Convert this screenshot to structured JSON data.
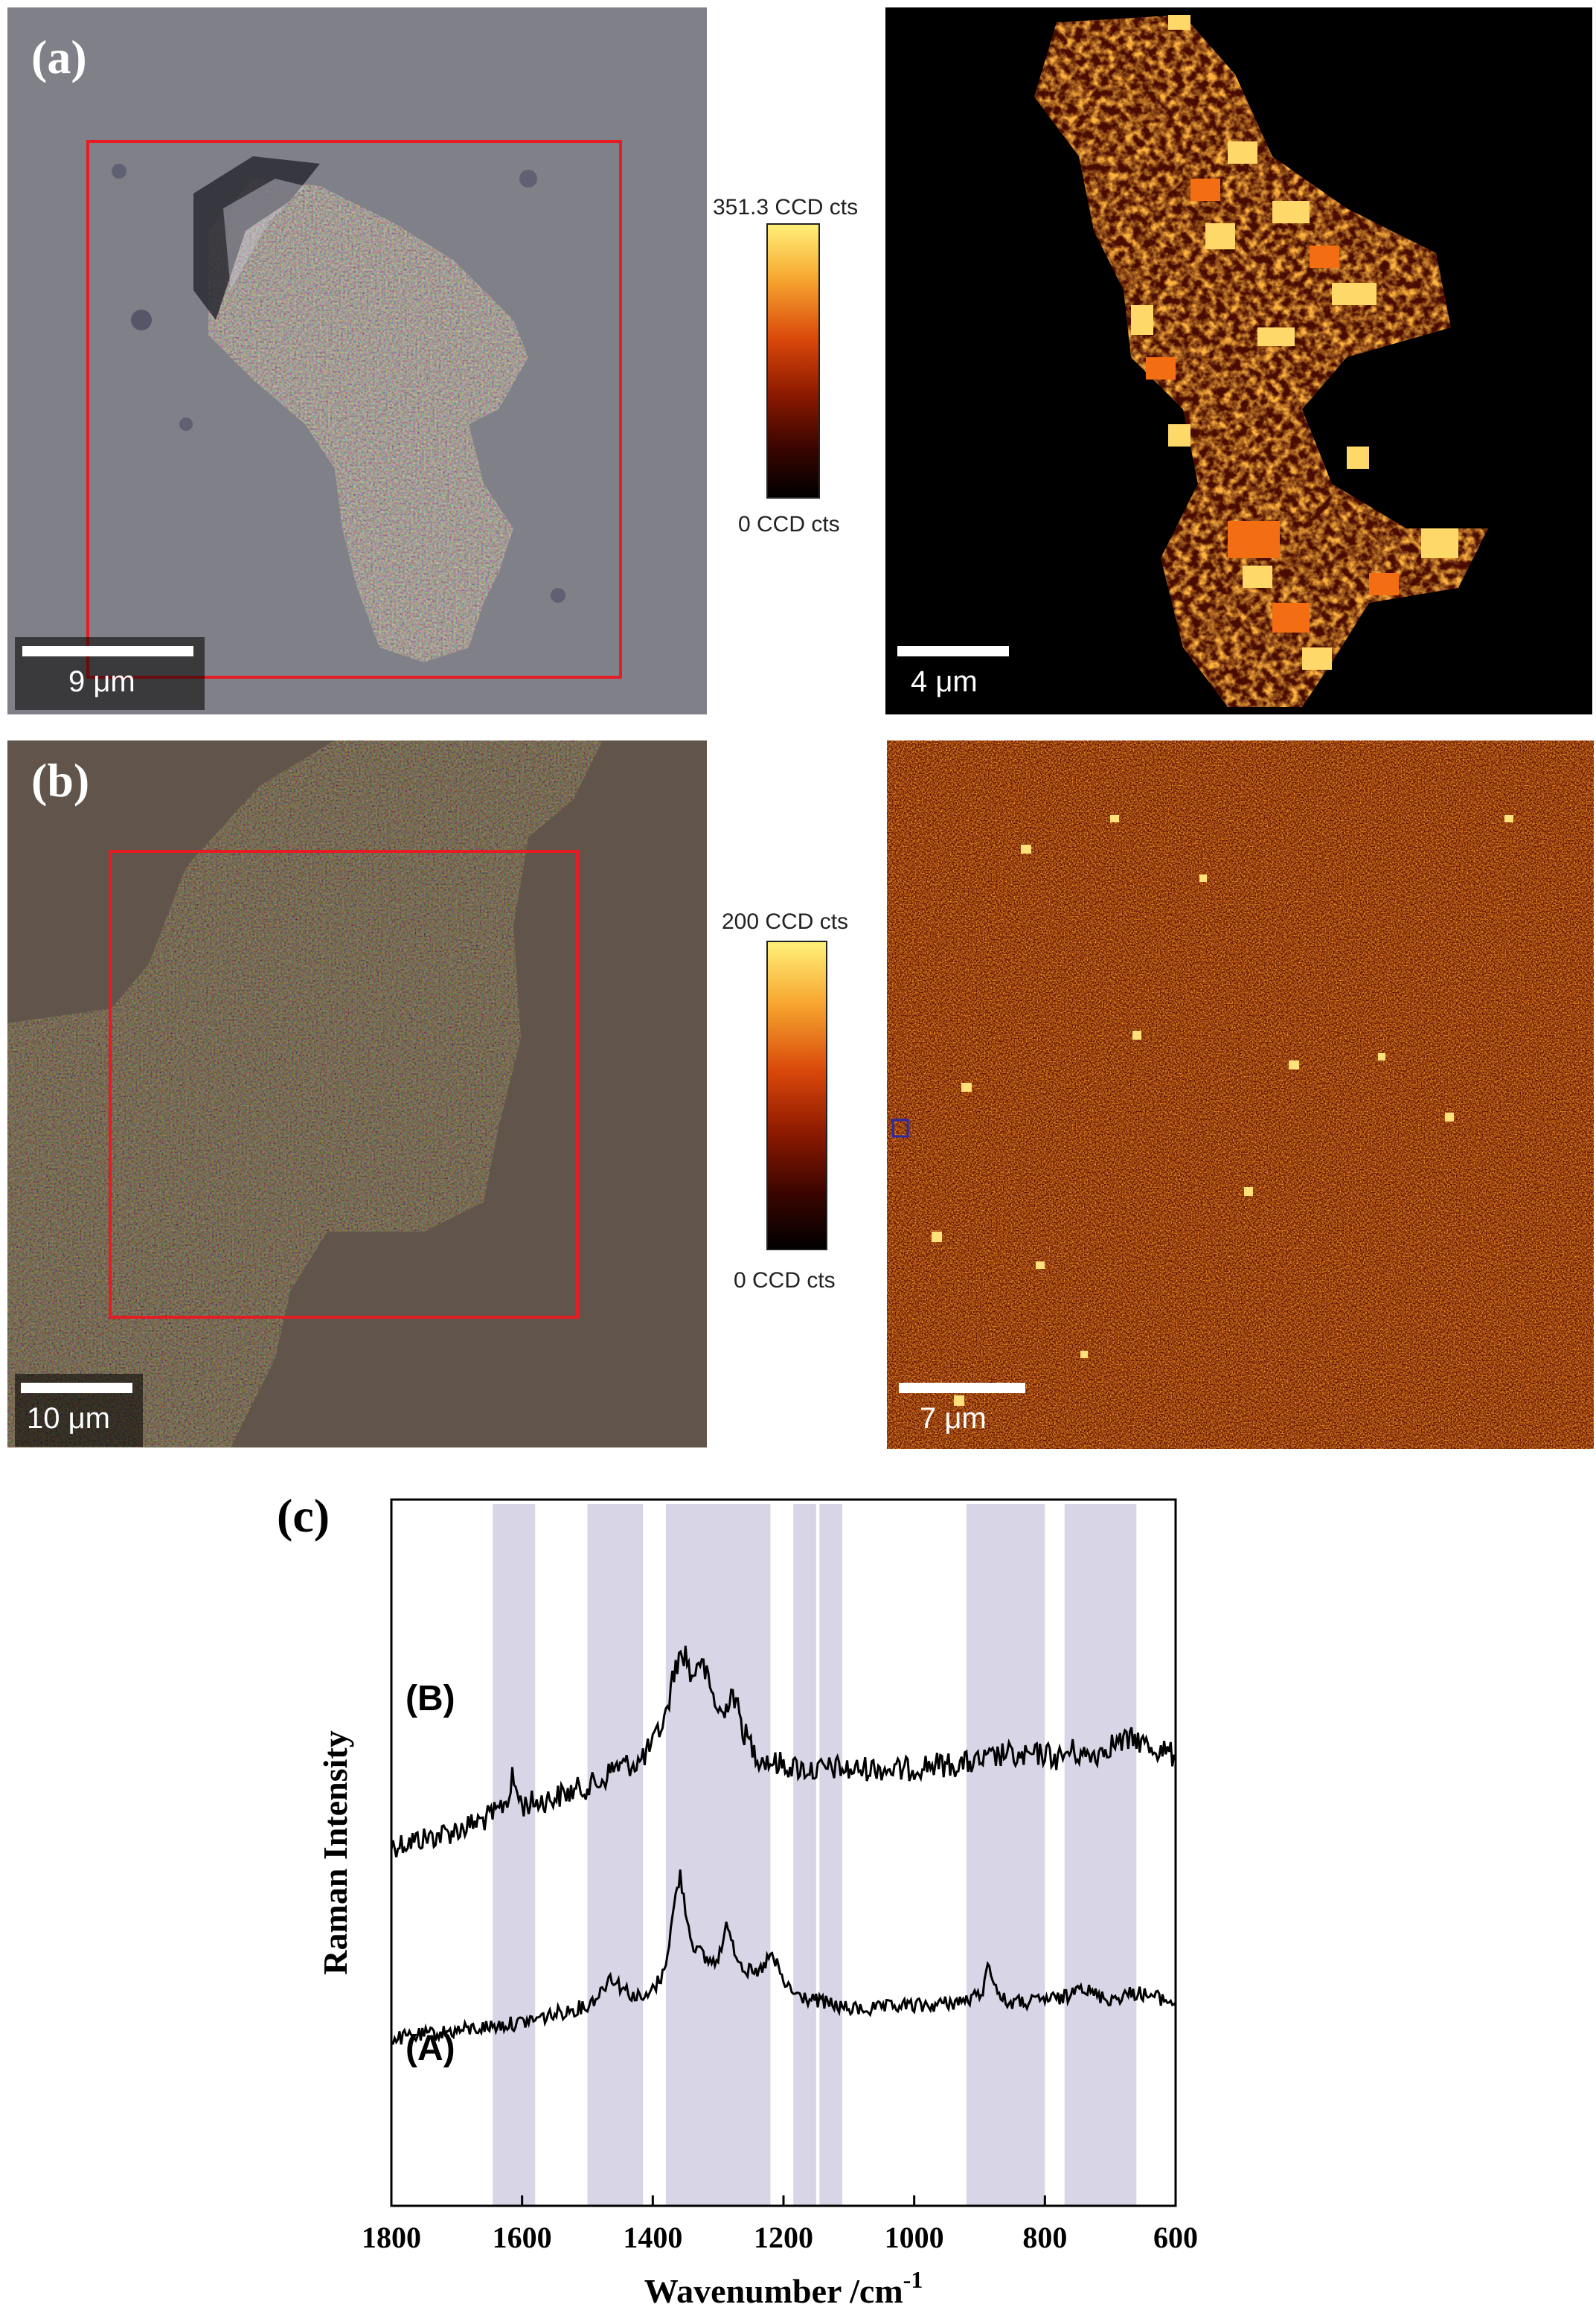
{
  "panels": {
    "a": {
      "label": "(a)",
      "optical_scale": "9 μm",
      "raman_scale": "4 μm",
      "colorbar_max": "351.3 CCD cts",
      "colorbar_min": "0 CCD cts"
    },
    "b": {
      "label": "(b)",
      "optical_scale": "10 μm",
      "raman_scale": "7 μm",
      "colorbar_max": "200 CCD cts",
      "colorbar_min": "0 CCD cts"
    },
    "c": {
      "label": "(c)"
    }
  },
  "colors": {
    "roi_box": "#e51c23",
    "colormap": [
      "#000000",
      "#3a0500",
      "#8e1a00",
      "#d9480a",
      "#f7a630",
      "#fff078"
    ],
    "highlight_band": "#d8d6e6",
    "spectrum_line": "#000000"
  },
  "chart_data": {
    "type": "line",
    "xlabel": "Wavenumber /cm",
    "xlabel_superscript": "-1",
    "ylabel": "Raman Intensity",
    "xlim": [
      1800,
      600
    ],
    "x_reversed": true,
    "x_ticks": [
      "1800",
      "1600",
      "1400",
      "1200",
      "1000",
      "800",
      "600"
    ],
    "y_ticks_shown": false,
    "highlight_bands": [
      [
        1580,
        1645
      ],
      [
        1415,
        1500
      ],
      [
        1220,
        1380
      ],
      [
        1150,
        1185
      ],
      [
        1110,
        1145
      ],
      [
        800,
        920
      ],
      [
        660,
        770
      ]
    ],
    "series": [
      {
        "name": "(B)",
        "x": [
          1800,
          1760,
          1720,
          1680,
          1640,
          1620,
          1615,
          1600,
          1560,
          1520,
          1480,
          1460,
          1440,
          1420,
          1400,
          1380,
          1365,
          1350,
          1340,
          1330,
          1320,
          1310,
          1300,
          1290,
          1280,
          1270,
          1260,
          1250,
          1240,
          1220,
          1200,
          1180,
          1150,
          1120,
          1100,
          1060,
          1020,
          980,
          940,
          900,
          870,
          860,
          840,
          820,
          800,
          780,
          760,
          740,
          720,
          700,
          680,
          660,
          640,
          620,
          600
        ],
        "y": [
          5,
          7,
          9,
          12,
          16,
          22,
          28,
          19,
          21,
          24,
          27,
          32,
          33,
          34,
          40,
          50,
          68,
          72,
          62,
          70,
          65,
          58,
          52,
          50,
          60,
          52,
          44,
          40,
          36,
          34,
          33,
          32,
          31,
          32,
          31,
          32,
          31,
          33,
          33,
          34,
          36,
          37,
          35,
          36,
          37,
          35,
          38,
          36,
          37,
          40,
          41,
          42,
          39,
          38,
          36
        ]
      },
      {
        "name": "(A)",
        "x": [
          1800,
          1760,
          1720,
          1680,
          1640,
          1600,
          1560,
          1520,
          1500,
          1480,
          1465,
          1450,
          1430,
          1410,
          1400,
          1385,
          1375,
          1365,
          1358,
          1350,
          1340,
          1320,
          1305,
          1295,
          1285,
          1275,
          1260,
          1240,
          1220,
          1210,
          1200,
          1180,
          1160,
          1140,
          1120,
          1100,
          1060,
          1020,
          980,
          940,
          910,
          895,
          885,
          875,
          860,
          840,
          820,
          800,
          780,
          760,
          750,
          740,
          720,
          700,
          680,
          660,
          640,
          620,
          600
        ],
        "y": [
          1,
          2,
          3,
          4,
          5,
          6,
          8,
          10,
          11,
          15,
          20,
          17,
          14,
          13,
          16,
          20,
          30,
          44,
          50,
          40,
          30,
          25,
          24,
          28,
          36,
          28,
          22,
          20,
          26,
          23,
          18,
          14,
          13,
          12,
          11,
          10,
          10,
          11,
          11,
          12,
          13,
          16,
          24,
          16,
          12,
          12,
          12,
          13,
          13,
          14,
          19,
          16,
          14,
          13,
          14,
          15,
          14,
          13,
          12
        ]
      }
    ]
  }
}
